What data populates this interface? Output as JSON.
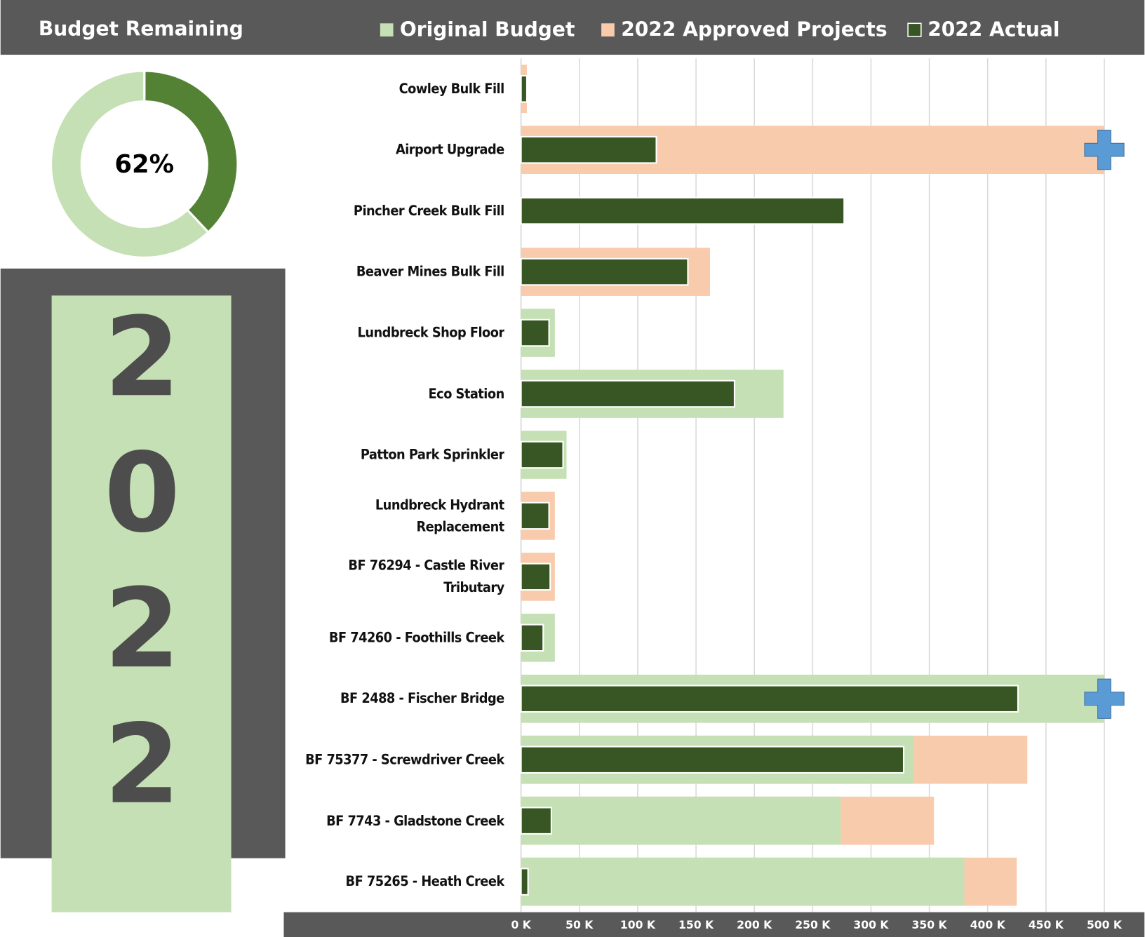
{
  "header": {
    "title": "Budget Remaining"
  },
  "donut": {
    "type": "pie",
    "label": "62%",
    "values": [
      38,
      62
    ],
    "colors": [
      "#548235",
      "#c5e0b4"
    ]
  },
  "year_digits": [
    "2",
    "0",
    "2",
    "2"
  ],
  "chart_data": {
    "type": "bar",
    "orientation": "horizontal",
    "categories": [
      "Cowley Bulk Fill",
      "Airport Upgrade",
      "Pincher Creek Bulk Fill",
      "Beaver Mines Bulk Fill",
      "Lundbreck Shop Floor",
      "Eco Station",
      "Patton Park Sprinkler",
      "Lundbreck Hydrant\nReplacement",
      "BF 76294 - Castle River\nTributary",
      "BF 74260 - Foothills Creek",
      "BF 2488 - Fischer Bridge",
      "BF 75377 - Screwdriver Creek",
      "BF 7743 - Gladstone Creek",
      "BF 75265 - Heath Creek"
    ],
    "series": [
      {
        "name": "Original Budget",
        "color": "#c5e0b4",
        "values": [
          null,
          null,
          null,
          null,
          29,
          225,
          39,
          null,
          null,
          29,
          500,
          337,
          274,
          380
        ]
      },
      {
        "name": "2022 Approved Projects",
        "color": "#f8cbad",
        "values": [
          5,
          500,
          null,
          162,
          null,
          null,
          null,
          29,
          29,
          null,
          null,
          434,
          354,
          425
        ]
      },
      {
        "name": "2022 Actual",
        "color": "#375623",
        "values": [
          5,
          116,
          277,
          143,
          24,
          183,
          36,
          24,
          25,
          19,
          426,
          328,
          26,
          6
        ]
      }
    ],
    "xlim": [
      0,
      500
    ],
    "xticks": [
      {
        "value": 0,
        "label": "0 K"
      },
      {
        "value": 50,
        "label": "50 K"
      },
      {
        "value": 100,
        "label": "100 K"
      },
      {
        "value": 150,
        "label": "150 K"
      },
      {
        "value": 200,
        "label": "200 K"
      },
      {
        "value": 250,
        "label": "250 K"
      },
      {
        "value": 300,
        "label": "300 K"
      },
      {
        "value": 350,
        "label": "350 K"
      },
      {
        "value": 400,
        "label": "400 K"
      },
      {
        "value": 450,
        "label": "450 K"
      },
      {
        "value": 500,
        "label": "500 K"
      }
    ],
    "grid": true
  }
}
